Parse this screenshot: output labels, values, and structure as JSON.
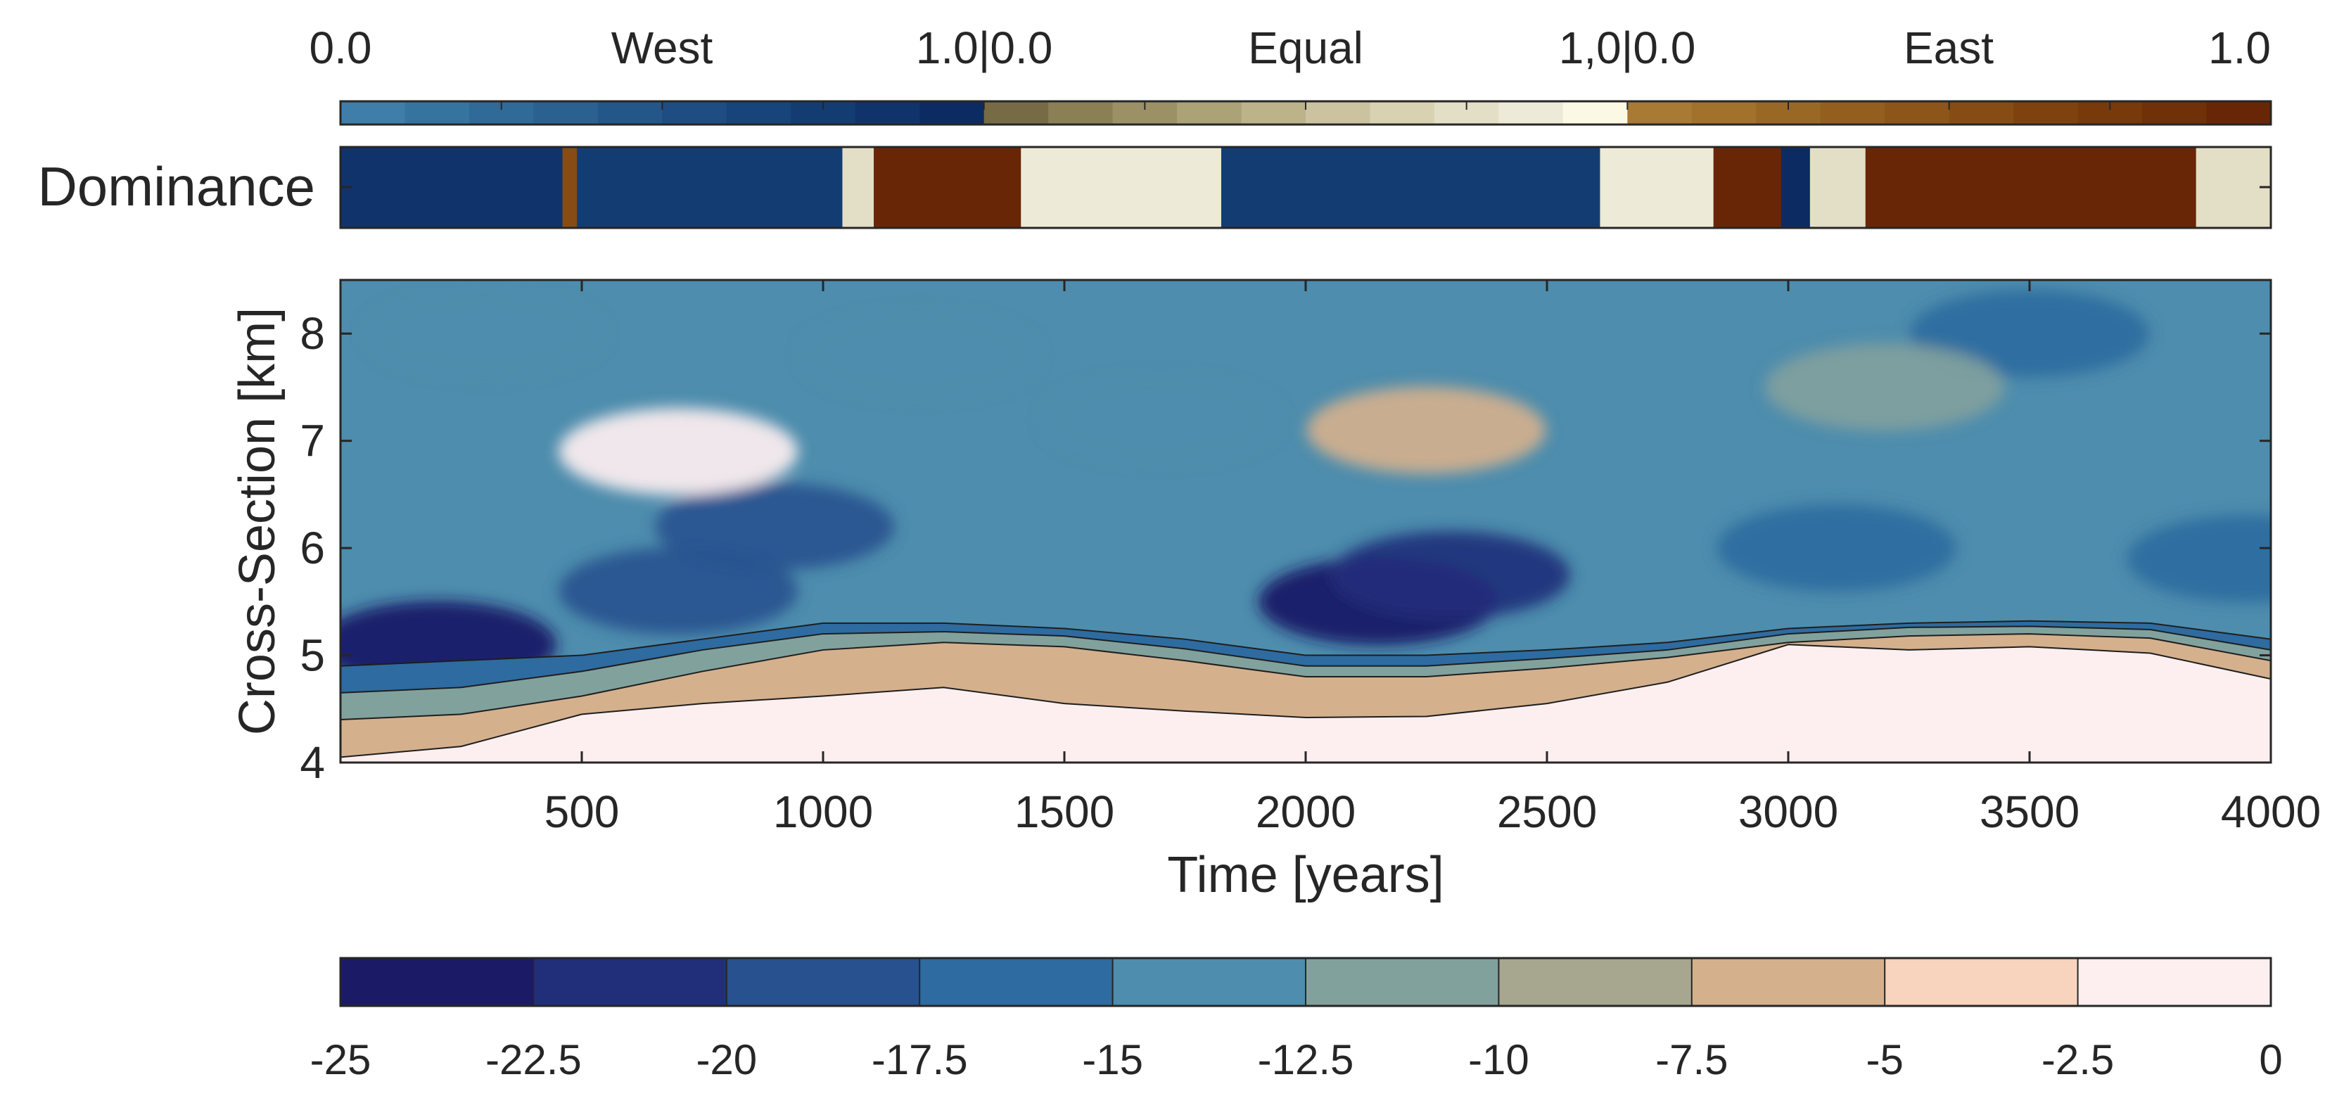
{
  "chart_data": [
    {
      "type": "colorbar",
      "name": "dominance-legend",
      "segment_labels": [
        "West",
        "Equal",
        "East"
      ],
      "tick_labels": [
        "0.0",
        "1.0|0.0",
        "1,0|0.0",
        "1.0"
      ],
      "segments": [
        {
          "name": "West",
          "range": [
            0.0,
            1.0
          ],
          "colors": [
            "#3e7ea8",
            "#3674a0",
            "#2f6a99",
            "#2a6191",
            "#23578a",
            "#1d4d82",
            "#17447b",
            "#133c73",
            "#10336b",
            "#0c2b63"
          ]
        },
        {
          "name": "Equal",
          "range": [
            0.0,
            1.0
          ],
          "colors": [
            "#766b45",
            "#8a7f55",
            "#9c9166",
            "#aca278",
            "#bcb38b",
            "#cbc39f",
            "#d8d2b3",
            "#e3dec6",
            "#eeead8",
            "#fbf9e3"
          ]
        },
        {
          "name": "East",
          "range": [
            0.0,
            1.0
          ],
          "colors": [
            "#a97a33",
            "#a2712c",
            "#9a6825",
            "#945e1f",
            "#8d5519",
            "#864c14",
            "#7f420f",
            "#78390b",
            "#703008",
            "#692606"
          ]
        }
      ]
    },
    {
      "type": "heatmap",
      "name": "dominance-strip",
      "ylabel": "Dominance",
      "xlim": [
        0,
        4000
      ],
      "intervals": [
        {
          "start": 0,
          "end": 460,
          "class": "West",
          "level": 0.85
        },
        {
          "start": 460,
          "end": 490,
          "class": "East",
          "level": 0.55
        },
        {
          "start": 490,
          "end": 1040,
          "class": "West",
          "level": 0.8
        },
        {
          "start": 1040,
          "end": 1105,
          "class": "Equal",
          "level": 0.8
        },
        {
          "start": 1105,
          "end": 1410,
          "class": "East",
          "level": 0.98
        },
        {
          "start": 1410,
          "end": 1825,
          "class": "Equal",
          "level": 0.9
        },
        {
          "start": 1825,
          "end": 2610,
          "class": "West",
          "level": 0.8
        },
        {
          "start": 2610,
          "end": 2845,
          "class": "Equal",
          "level": 0.85
        },
        {
          "start": 2845,
          "end": 2985,
          "class": "East",
          "level": 0.98
        },
        {
          "start": 2985,
          "end": 3045,
          "class": "West",
          "level": 0.95
        },
        {
          "start": 3045,
          "end": 3160,
          "class": "Equal",
          "level": 0.8
        },
        {
          "start": 3160,
          "end": 3845,
          "class": "East",
          "level": 0.98
        },
        {
          "start": 3845,
          "end": 4000,
          "class": "Equal",
          "level": 0.75
        }
      ]
    },
    {
      "type": "contour",
      "name": "cross-section-contour",
      "xlabel": "Time [years]",
      "ylabel": "Cross-Section [km]",
      "xlim": [
        0,
        4000
      ],
      "ylim": [
        4,
        8.5
      ],
      "xticks": [
        500,
        1000,
        1500,
        2000,
        2500,
        3000,
        3500,
        4000
      ],
      "yticks": [
        4,
        5,
        6,
        7,
        8
      ],
      "levels": [
        -25,
        -22.5,
        -20,
        -17.5,
        -15,
        -12.5,
        -10,
        -7.5,
        -5,
        -2.5,
        0
      ],
      "level_colors": [
        "#1a1a66",
        "#212f7b",
        "#27528f",
        "#2e6ba0",
        "#4e8dad",
        "#81a19d",
        "#a7a68f",
        "#d4b08d",
        "#f8d3bd",
        "#fdeff0"
      ],
      "features": [
        {
          "x": 200,
          "y": 5.1,
          "value": -23.5
        },
        {
          "x": 700,
          "y": 5.6,
          "value": -20
        },
        {
          "x": 900,
          "y": 6.2,
          "value": -18
        },
        {
          "x": 1200,
          "y": 7.8,
          "value": -14
        },
        {
          "x": 1700,
          "y": 7.2,
          "value": -13
        },
        {
          "x": 2150,
          "y": 5.5,
          "value": -23
        },
        {
          "x": 2300,
          "y": 5.75,
          "value": -21
        },
        {
          "x": 2250,
          "y": 7.1,
          "value": -7
        },
        {
          "x": 300,
          "y": 8.0,
          "value": -13
        },
        {
          "x": 700,
          "y": 6.9,
          "value": -2
        },
        {
          "x": 3500,
          "y": 8.0,
          "value": -17
        },
        {
          "x": 3100,
          "y": 6.0,
          "value": -17
        },
        {
          "x": 3200,
          "y": 7.5,
          "value": -12
        },
        {
          "x": 3950,
          "y": 5.9,
          "value": -17
        },
        {
          "x": 2000,
          "y": 4.4,
          "value": -1.5
        }
      ],
      "series": [
        {
          "name": "boundary_-15",
          "x": [
            0,
            250,
            500,
            750,
            1000,
            1250,
            1500,
            1750,
            2000,
            2250,
            2500,
            2750,
            3000,
            3250,
            3500,
            3750,
            4000
          ],
          "values": [
            4.9,
            4.95,
            5.0,
            5.15,
            5.3,
            5.3,
            5.25,
            5.15,
            5.0,
            5.0,
            5.05,
            5.12,
            5.25,
            5.3,
            5.32,
            5.3,
            5.15
          ]
        },
        {
          "name": "boundary_-10",
          "x": [
            0,
            250,
            500,
            750,
            1000,
            1250,
            1500,
            1750,
            2000,
            2250,
            2500,
            2750,
            3000,
            3250,
            3500,
            3750,
            4000
          ],
          "values": [
            4.65,
            4.7,
            4.85,
            5.05,
            5.2,
            5.22,
            5.18,
            5.06,
            4.9,
            4.9,
            4.97,
            5.05,
            5.2,
            5.26,
            5.27,
            5.24,
            5.05
          ]
        },
        {
          "name": "boundary_-5",
          "x": [
            0,
            250,
            500,
            750,
            1000,
            1250,
            1500,
            1750,
            2000,
            2250,
            2500,
            2750,
            3000,
            3250,
            3500,
            3750,
            4000
          ],
          "values": [
            4.4,
            4.45,
            4.62,
            4.85,
            5.05,
            5.12,
            5.08,
            4.95,
            4.8,
            4.8,
            4.88,
            4.98,
            5.12,
            5.18,
            5.2,
            5.16,
            4.95
          ]
        },
        {
          "name": "boundary_-2.5",
          "x": [
            0,
            250,
            500,
            750,
            1000,
            1250,
            1500,
            1750,
            2000,
            2250,
            2500,
            2750,
            3000,
            3250,
            3500,
            3750,
            4000
          ],
          "values": [
            4.05,
            4.15,
            4.45,
            4.55,
            4.62,
            4.7,
            4.55,
            4.48,
            4.42,
            4.43,
            4.55,
            4.75,
            5.1,
            5.05,
            5.08,
            5.02,
            4.78
          ]
        }
      ]
    },
    {
      "type": "colorbar",
      "name": "value-colorbar",
      "tick_labels": [
        "-25",
        "-22.5",
        "-20",
        "-17.5",
        "-15",
        "-12.5",
        "-10",
        "-7.5",
        "-5",
        "-2.5",
        "0"
      ],
      "range": [
        -25,
        0
      ],
      "colors": [
        "#1a1a66",
        "#212f7b",
        "#27528f",
        "#2e6ba0",
        "#4e8dad",
        "#81a19d",
        "#a7a68f",
        "#d4b08d",
        "#f8d3bd",
        "#fdeff0"
      ]
    }
  ]
}
